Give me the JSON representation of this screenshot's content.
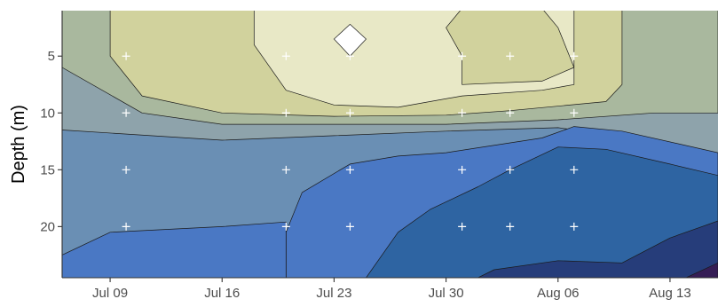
{
  "chart_data": {
    "type": "heatmap",
    "subtype": "filled-contour",
    "title": "",
    "xlabel": "",
    "ylabel": "Depth (m)",
    "x_axis": {
      "type": "date",
      "range": [
        "2019-07-06",
        "2019-08-16"
      ],
      "ticks": [
        {
          "value": "2019-07-09",
          "label": "Jul 09"
        },
        {
          "value": "2019-07-16",
          "label": "Jul 16"
        },
        {
          "value": "2019-07-23",
          "label": "Jul 23"
        },
        {
          "value": "2019-07-30",
          "label": "Jul 30"
        },
        {
          "value": "2019-08-06",
          "label": "Aug 06"
        },
        {
          "value": "2019-08-13",
          "label": "Aug 13"
        }
      ]
    },
    "y_axis": {
      "reversed": true,
      "range": [
        1,
        24.5
      ],
      "ticks": [
        5,
        10,
        15,
        20
      ]
    },
    "levels_colors": [
      "#ffffff",
      "#e8e8c6",
      "#d1d29d",
      "#a9b89e",
      "#8ea3ab",
      "#6a8fb4",
      "#4a78c4",
      "#2e64a2",
      "#263d7a",
      "#351d55"
    ],
    "contour_levels": [
      {
        "level": 0,
        "points": [
          [
            "2019-07-24",
            2.2
          ],
          [
            "2019-07-25",
            3.5
          ],
          [
            "2019-07-24",
            5.0
          ],
          [
            "2019-07-23",
            3.5
          ]
        ]
      },
      {
        "level": 1,
        "points": [
          [
            "2019-07-18",
            0.8
          ],
          [
            "2019-07-31",
            0.8
          ],
          [
            "2019-07-30",
            2.5
          ],
          [
            "2019-07-31",
            5.0
          ],
          [
            "2019-07-31",
            7.5
          ],
          [
            "2019-08-05",
            7.2
          ],
          [
            "2019-08-07",
            6.0
          ],
          [
            "2019-08-06",
            2.5
          ],
          [
            "2019-08-05",
            0.8
          ],
          [
            "2019-08-07",
            0.8
          ],
          [
            "2019-08-07",
            7.5
          ],
          [
            "2019-08-05",
            8.0
          ],
          [
            "2019-07-31",
            8.5
          ],
          [
            "2019-07-27",
            9.5
          ],
          [
            "2019-07-23",
            9.3
          ],
          [
            "2019-07-20",
            8.0
          ],
          [
            "2019-07-18",
            4.0
          ]
        ]
      },
      {
        "level": 2,
        "points": [
          [
            "2019-07-09",
            0.8
          ],
          [
            "2019-08-10",
            0.8
          ],
          [
            "2019-08-10",
            7.5
          ],
          [
            "2019-08-09",
            9.0
          ],
          [
            "2019-08-03",
            9.8
          ],
          [
            "2019-07-30",
            10.2
          ],
          [
            "2019-07-23",
            10.3
          ],
          [
            "2019-07-16",
            10.0
          ],
          [
            "2019-07-11",
            8.5
          ],
          [
            "2019-07-09",
            5.0
          ]
        ]
      },
      {
        "level": 3,
        "points": [
          [
            "2019-07-06",
            0.8
          ],
          [
            "2019-08-16",
            0.8
          ],
          [
            "2019-08-16",
            10.0
          ],
          [
            "2019-08-12",
            10.0
          ],
          [
            "2019-08-06",
            10.6
          ],
          [
            "2019-07-30",
            11.0
          ],
          [
            "2019-07-23",
            11.0
          ],
          [
            "2019-07-16",
            11.0
          ],
          [
            "2019-07-11",
            10.0
          ],
          [
            "2019-07-06",
            6.0
          ]
        ]
      },
      {
        "level": 4,
        "points": [
          [
            "2019-07-06",
            8.0
          ],
          [
            "2019-07-09",
            9.8
          ],
          [
            "2019-07-16",
            11.6
          ],
          [
            "2019-07-23",
            11.8
          ],
          [
            "2019-07-30",
            11.3
          ],
          [
            "2019-08-06",
            10.8
          ],
          [
            "2019-08-12",
            10.5
          ],
          [
            "2019-08-16",
            10.2
          ],
          [
            "2019-08-16",
            24.5
          ],
          [
            "2019-07-06",
            24.5
          ]
        ]
      },
      {
        "level": 5,
        "points": [
          [
            "2019-07-06",
            11.5
          ],
          [
            "2019-07-16",
            12.4
          ],
          [
            "2019-07-23",
            12.0
          ],
          [
            "2019-07-30",
            11.6
          ],
          [
            "2019-08-06",
            11.3
          ],
          [
            "2019-08-12",
            12.5
          ],
          [
            "2019-08-16",
            14.0
          ],
          [
            "2019-08-16",
            24.5
          ],
          [
            "2019-07-06",
            24.5
          ]
        ]
      },
      {
        "level": 6,
        "points": [
          [
            "2019-07-20",
            24.5
          ],
          [
            "2019-07-20",
            20.5
          ],
          [
            "2019-07-21",
            17.0
          ],
          [
            "2019-07-24",
            14.5
          ],
          [
            "2019-07-27",
            13.8
          ],
          [
            "2019-07-30",
            13.5
          ],
          [
            "2019-08-05",
            12.2
          ],
          [
            "2019-08-07",
            11.2
          ],
          [
            "2019-08-10",
            11.6
          ],
          [
            "2019-08-16",
            13.5
          ],
          [
            "2019-08-16",
            24.5
          ]
        ],
        "extra": [
          [
            "2019-07-06",
            22.5
          ],
          [
            "2019-07-09",
            20.5
          ],
          [
            "2019-07-16",
            20.0
          ],
          [
            "2019-07-20",
            19.6
          ],
          [
            "2019-07-20",
            24.5
          ],
          [
            "2019-07-06",
            24.5
          ]
        ]
      },
      {
        "level": 7,
        "points": [
          [
            "2019-07-25",
            24.5
          ],
          [
            "2019-07-27",
            20.5
          ],
          [
            "2019-07-29",
            18.5
          ],
          [
            "2019-08-01",
            16.5
          ],
          [
            "2019-08-03",
            15.0
          ],
          [
            "2019-08-06",
            13.0
          ],
          [
            "2019-08-09",
            13.2
          ],
          [
            "2019-08-13",
            14.5
          ],
          [
            "2019-08-16",
            15.5
          ],
          [
            "2019-08-16",
            24.5
          ]
        ]
      },
      {
        "level": 8,
        "points": [
          [
            "2019-08-01",
            24.5
          ],
          [
            "2019-08-02",
            23.8
          ],
          [
            "2019-08-06",
            23.0
          ],
          [
            "2019-08-10",
            23.2
          ],
          [
            "2019-08-13",
            21.0
          ],
          [
            "2019-08-16",
            19.5
          ],
          [
            "2019-08-16",
            24.5
          ]
        ]
      },
      {
        "level": 9,
        "points": [
          [
            "2019-08-14",
            24.5
          ],
          [
            "2019-08-16",
            23.2
          ],
          [
            "2019-08-16",
            24.5
          ]
        ]
      }
    ],
    "sample_points": {
      "dates": [
        "2019-07-10",
        "2019-07-20",
        "2019-07-24",
        "2019-07-31",
        "2019-08-03",
        "2019-08-07"
      ],
      "depths": [
        5,
        10,
        15,
        20
      ]
    }
  }
}
